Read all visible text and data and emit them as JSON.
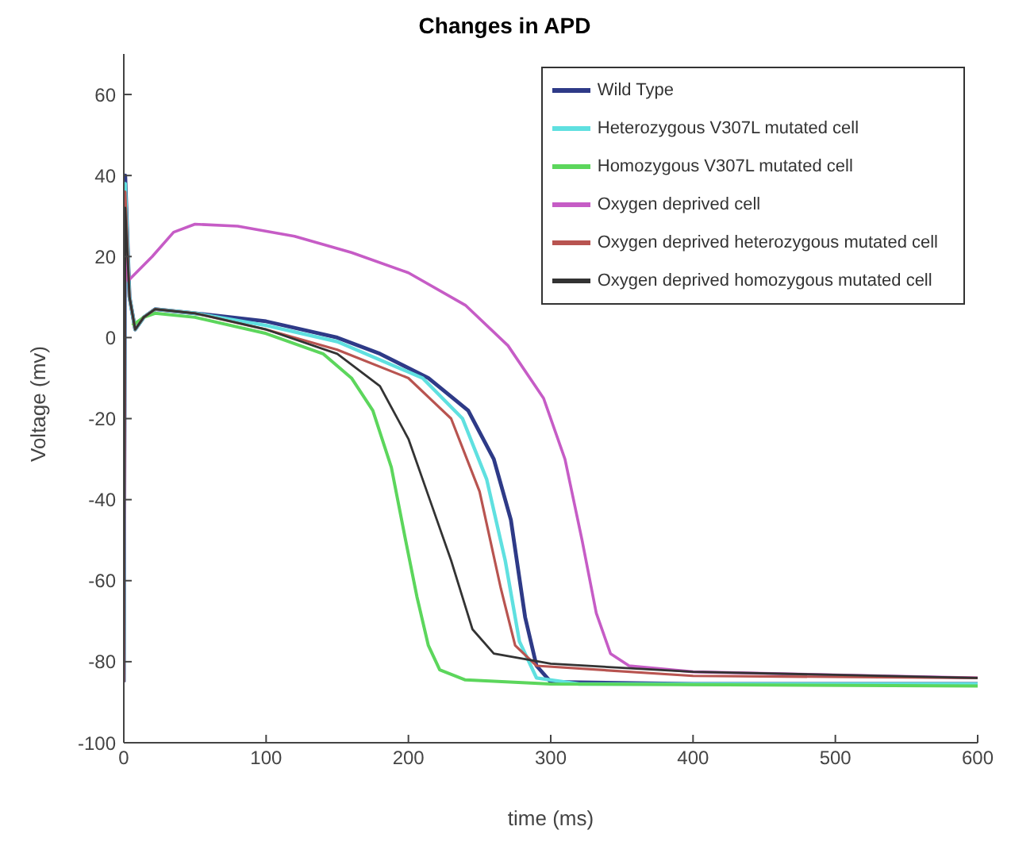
{
  "chart_data": {
    "type": "line",
    "title": "Changes in APD",
    "xlabel": "time (ms)",
    "ylabel": "Voltage (mv)",
    "xlim": [
      0,
      600
    ],
    "ylim": [
      -100,
      70
    ],
    "xticks": [
      0,
      100,
      200,
      300,
      400,
      500,
      600
    ],
    "yticks": [
      -100,
      -80,
      -60,
      -40,
      -20,
      0,
      20,
      40,
      60
    ],
    "grid": false,
    "legend": "top right",
    "marker": "none",
    "line_style": "solid",
    "series": [
      {
        "name": "Wild Type",
        "color": "#2e3a87",
        "x": [
          0,
          1,
          4,
          8,
          14,
          22,
          50,
          100,
          150,
          180,
          214,
          242,
          260,
          272,
          282,
          290,
          300,
          400,
          600
        ],
        "values": [
          -85,
          40,
          10,
          2,
          5,
          7,
          6,
          4,
          0,
          -4,
          -10,
          -18,
          -30,
          -45,
          -69,
          -81,
          -85,
          -85.5,
          -85.5
        ]
      },
      {
        "name": "Heterozygous V307L mutated cell",
        "color": "#5fe0e0",
        "x": [
          0,
          1,
          4,
          8,
          14,
          22,
          50,
          100,
          150,
          210,
          238,
          255,
          268,
          278,
          290,
          320,
          600
        ],
        "values": [
          -85,
          38,
          10,
          2,
          5,
          7,
          6,
          3,
          -1,
          -10,
          -20,
          -35,
          -55,
          -75,
          -84,
          -85.5,
          -85.5
        ]
      },
      {
        "name": "Homozygous V307L mutated cell",
        "color": "#5cd65c",
        "x": [
          6,
          14,
          22,
          50,
          100,
          140,
          160,
          175,
          188,
          198,
          206,
          214,
          222,
          240,
          300,
          600
        ],
        "values": [
          3,
          5,
          6,
          5,
          1,
          -4,
          -10,
          -18,
          -32,
          -50,
          -64,
          -76,
          -82,
          -84.5,
          -85.5,
          -86
        ]
      },
      {
        "name": "Oxygen deprived cell",
        "color": "#c65cc6",
        "x": [
          0,
          1,
          3,
          20,
          35,
          50,
          80,
          120,
          160,
          200,
          240,
          270,
          295,
          310,
          322,
          332,
          342,
          355,
          400,
          600
        ],
        "values": [
          -85,
          30,
          14,
          20,
          26,
          28,
          27.5,
          25,
          21,
          16,
          8,
          -2,
          -15,
          -30,
          -50,
          -68,
          -78,
          -81,
          -82.5,
          -84
        ]
      },
      {
        "name": "Oxygen deprived heterozygous mutated cell",
        "color": "#b85450",
        "x": [
          0,
          1,
          4,
          8,
          14,
          22,
          50,
          100,
          150,
          200,
          230,
          250,
          265,
          275,
          290,
          400,
          600
        ],
        "values": [
          -85,
          36,
          10,
          2,
          5,
          7,
          6,
          2,
          -3,
          -10,
          -20,
          -38,
          -62,
          -76,
          -81,
          -83.5,
          -84
        ]
      },
      {
        "name": "Oxygen deprived homozygous mutated cell",
        "color": "#333333",
        "x": [
          0,
          1,
          4,
          8,
          14,
          22,
          50,
          100,
          150,
          180,
          200,
          215,
          230,
          245,
          260,
          300,
          400,
          600
        ],
        "values": [
          -85,
          32,
          10,
          2,
          5,
          7,
          6,
          2,
          -4,
          -12,
          -25,
          -40,
          -55,
          -72,
          -78,
          -80.5,
          -82.5,
          -84
        ]
      }
    ]
  }
}
